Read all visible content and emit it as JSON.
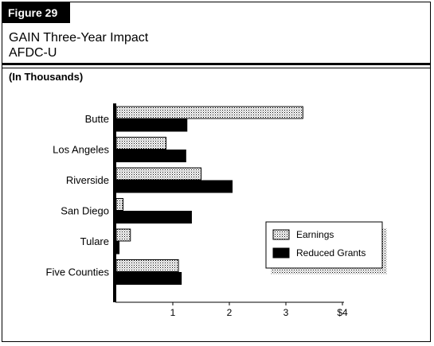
{
  "header": {
    "figure_label": "Figure 29",
    "title_line1": "GAIN Three-Year Impact",
    "title_line2": "AFDC-U",
    "units": "(In Thousands)"
  },
  "colors": {
    "earnings": "#c8c8c8",
    "reduced_grants": "#000000"
  },
  "chart_data": {
    "type": "bar",
    "orientation": "horizontal",
    "categories": [
      "Butte",
      "Los Angeles",
      "Riverside",
      "San Diego",
      "Tulare",
      "Five Counties"
    ],
    "series": [
      {
        "name": "Earnings",
        "values": [
          3.3,
          0.88,
          1.5,
          0.12,
          0.25,
          1.1
        ]
      },
      {
        "name": "Reduced Grants",
        "values": [
          1.25,
          1.23,
          2.05,
          1.33,
          0.05,
          1.15
        ]
      }
    ],
    "xlim": [
      0,
      4
    ],
    "x_ticks": [
      "1",
      "2",
      "3",
      "$4"
    ],
    "x_tick_values": [
      1,
      2,
      3,
      4
    ],
    "legend_position": "right",
    "grid": false
  }
}
